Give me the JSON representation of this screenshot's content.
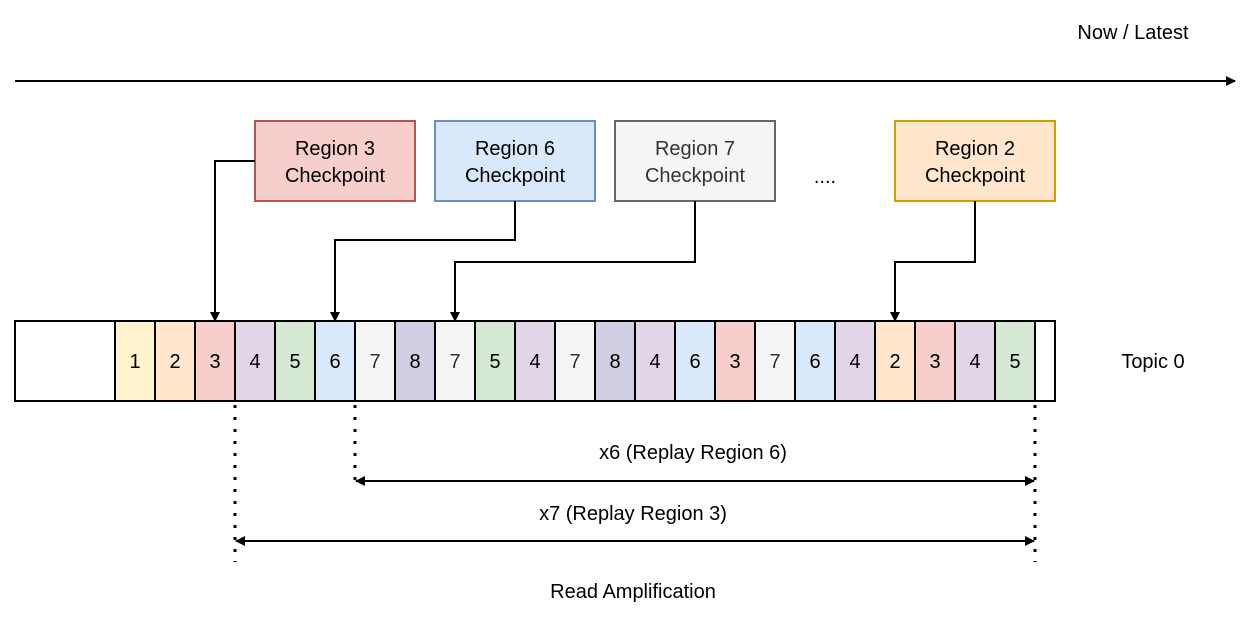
{
  "timeline": {
    "label": "Now / Latest"
  },
  "checkpoints": [
    {
      "line1": "Region 3",
      "line2": "Checkpoint",
      "fill": "#f8cecc",
      "stroke": "#b85450",
      "text_color": "#000000",
      "target_index": 2
    },
    {
      "line1": "Region 6",
      "line2": "Checkpoint",
      "fill": "#dae8fc",
      "stroke": "#6c8ebf",
      "text_color": "#000000",
      "target_index": 5
    },
    {
      "line1": "Region 7",
      "line2": "Checkpoint",
      "fill": "#f5f5f5",
      "stroke": "#666666",
      "text_color": "#333333",
      "target_index": 8
    },
    {
      "line1": "Region 2",
      "line2": "Checkpoint",
      "fill": "#ffe6cc",
      "stroke": "#d79b00",
      "text_color": "#000000",
      "target_index": 19
    }
  ],
  "ellipsis": "....",
  "topic": {
    "label": "Topic 0",
    "cells": [
      "1",
      "2",
      "3",
      "4",
      "5",
      "6",
      "7",
      "8",
      "7",
      "5",
      "4",
      "7",
      "8",
      "4",
      "6",
      "3",
      "7",
      "6",
      "4",
      "2",
      "3",
      "4",
      "5"
    ]
  },
  "region_colors": {
    "1": "#fff2cc",
    "2": "#ffe6cc",
    "3": "#f8cecc",
    "4": "#e1d5e7",
    "5": "#d5e8d4",
    "6": "#dae8fc",
    "7": "#f5f5f5",
    "8": "#d0cee2"
  },
  "replays": [
    {
      "label": "x6 (Replay Region 6)"
    },
    {
      "label": "x7 (Replay Region 3)"
    }
  ],
  "caption": "Read Amplification"
}
